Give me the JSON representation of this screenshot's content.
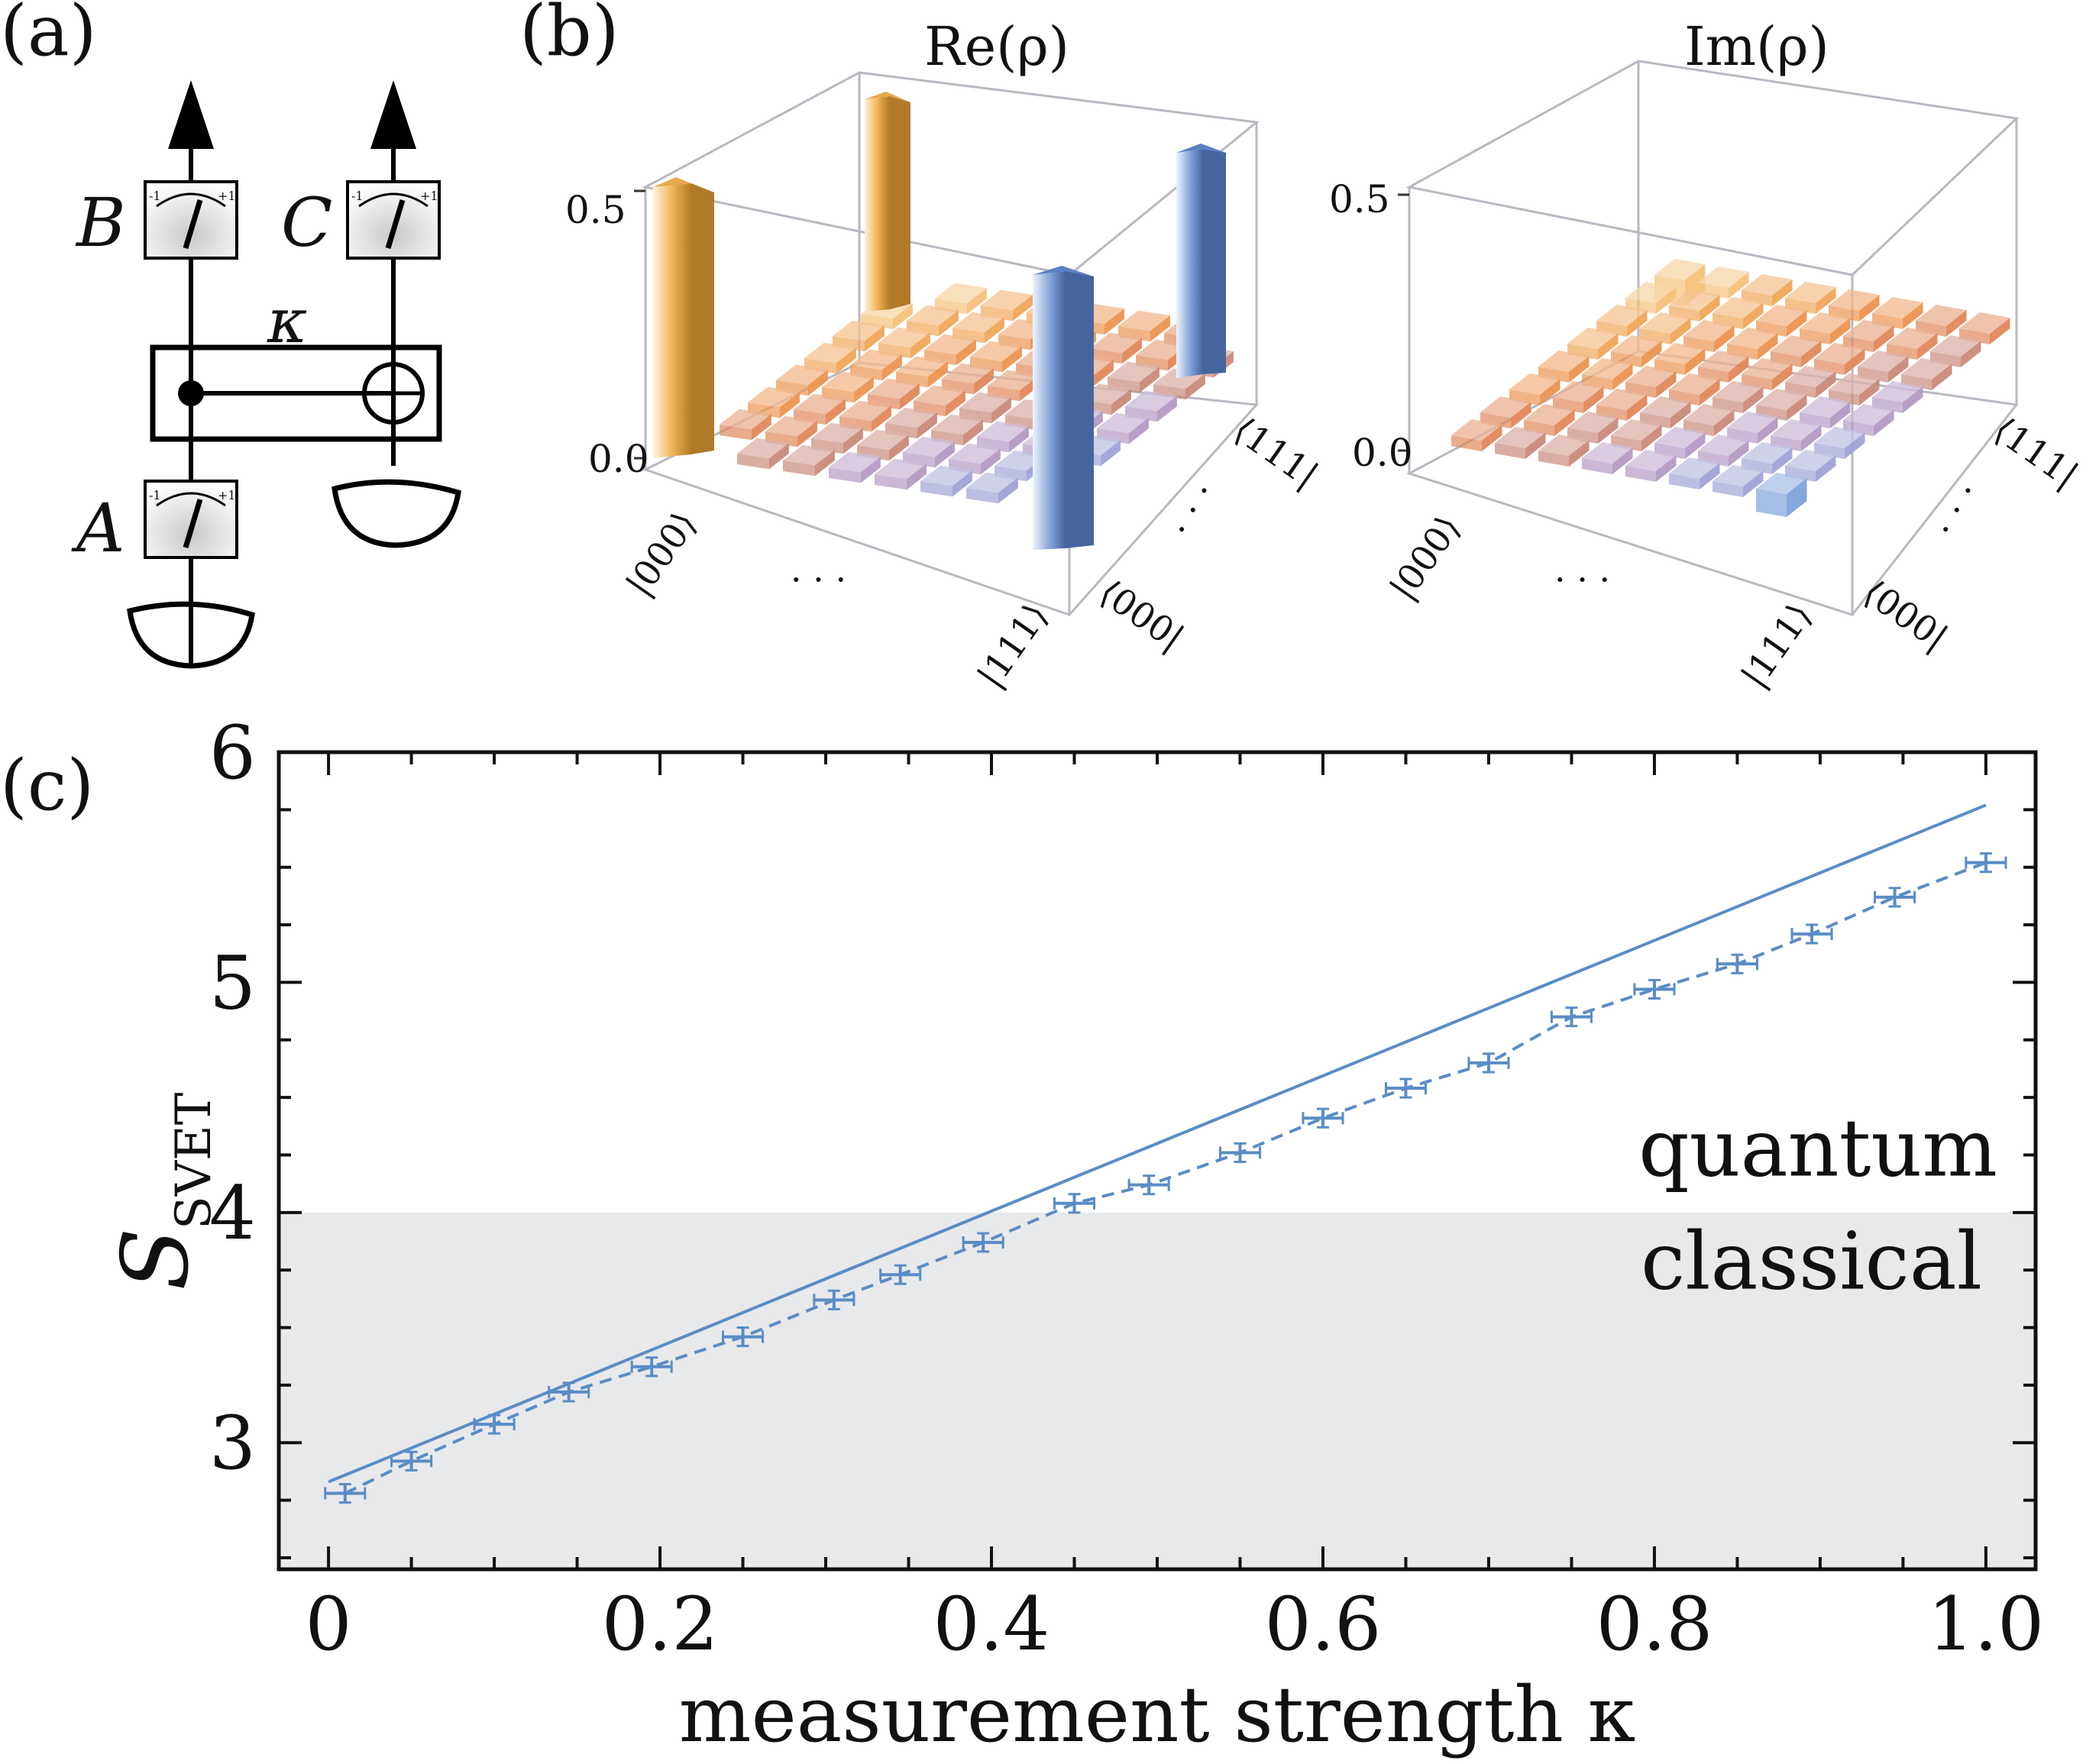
{
  "labels": {
    "panel_a": "(a)",
    "panel_b": "(b)",
    "panel_c": "(c)"
  },
  "circuit": {
    "meter_b": "B",
    "meter_c": "C",
    "meter_a": "A",
    "kappa": "κ",
    "meter_min": "-1",
    "meter_max": "+1"
  },
  "density": {
    "re_title": "Re(ρ)",
    "im_title": "Im(ρ)",
    "tick_top": "0.5",
    "tick_bottom": "0.0",
    "ket_000": "|000⟩",
    "ket_111": "|111⟩",
    "bra_000": "⟨000|",
    "bra_111": "⟨111|",
    "dots": "· · ·",
    "re_values": {
      "p000_000": 0.5,
      "p000_111": 0.5,
      "p111_000": 0.5,
      "p111_111": 0.5
    },
    "im_values": {
      "corner_small": 0.03
    },
    "colors": {
      "orange": "#e8a23a",
      "blue": "#6e93d0",
      "purple": "#a99ac8"
    }
  },
  "chart_data": {
    "type": "line",
    "xlabel": "measurement strength κ",
    "ylabel": "S",
    "ylabel_sub": "SVET",
    "xlim": [
      -0.03,
      1.03
    ],
    "ylim": [
      2.45,
      6.0
    ],
    "xticks": [
      "0",
      "0.2",
      "0.4",
      "0.6",
      "0.8",
      "1.0"
    ],
    "yticks": [
      "3",
      "4",
      "5",
      "6"
    ],
    "classical_bound": 4,
    "region_labels": {
      "quantum": "quantum",
      "classical": "classical"
    },
    "theory_line": {
      "x": [
        0,
        1.0
      ],
      "y": [
        2.83,
        5.77
      ]
    },
    "series": [
      {
        "x": [
          0.01,
          0.05,
          0.1,
          0.145,
          0.195,
          0.25,
          0.305,
          0.345,
          0.395,
          0.45,
          0.495,
          0.55,
          0.6,
          0.65,
          0.7,
          0.75,
          0.8,
          0.85,
          0.895,
          0.945,
          1.0
        ],
        "y": [
          2.78,
          2.92,
          3.08,
          3.22,
          3.33,
          3.46,
          3.62,
          3.73,
          3.87,
          4.04,
          4.12,
          4.26,
          4.41,
          4.54,
          4.65,
          4.85,
          4.97,
          5.08,
          5.21,
          5.37,
          5.52
        ],
        "yerr": 0.04,
        "xerr": 0.012
      }
    ],
    "line_color": "#5a8cc6",
    "shade_color": "#e8e9eb"
  }
}
